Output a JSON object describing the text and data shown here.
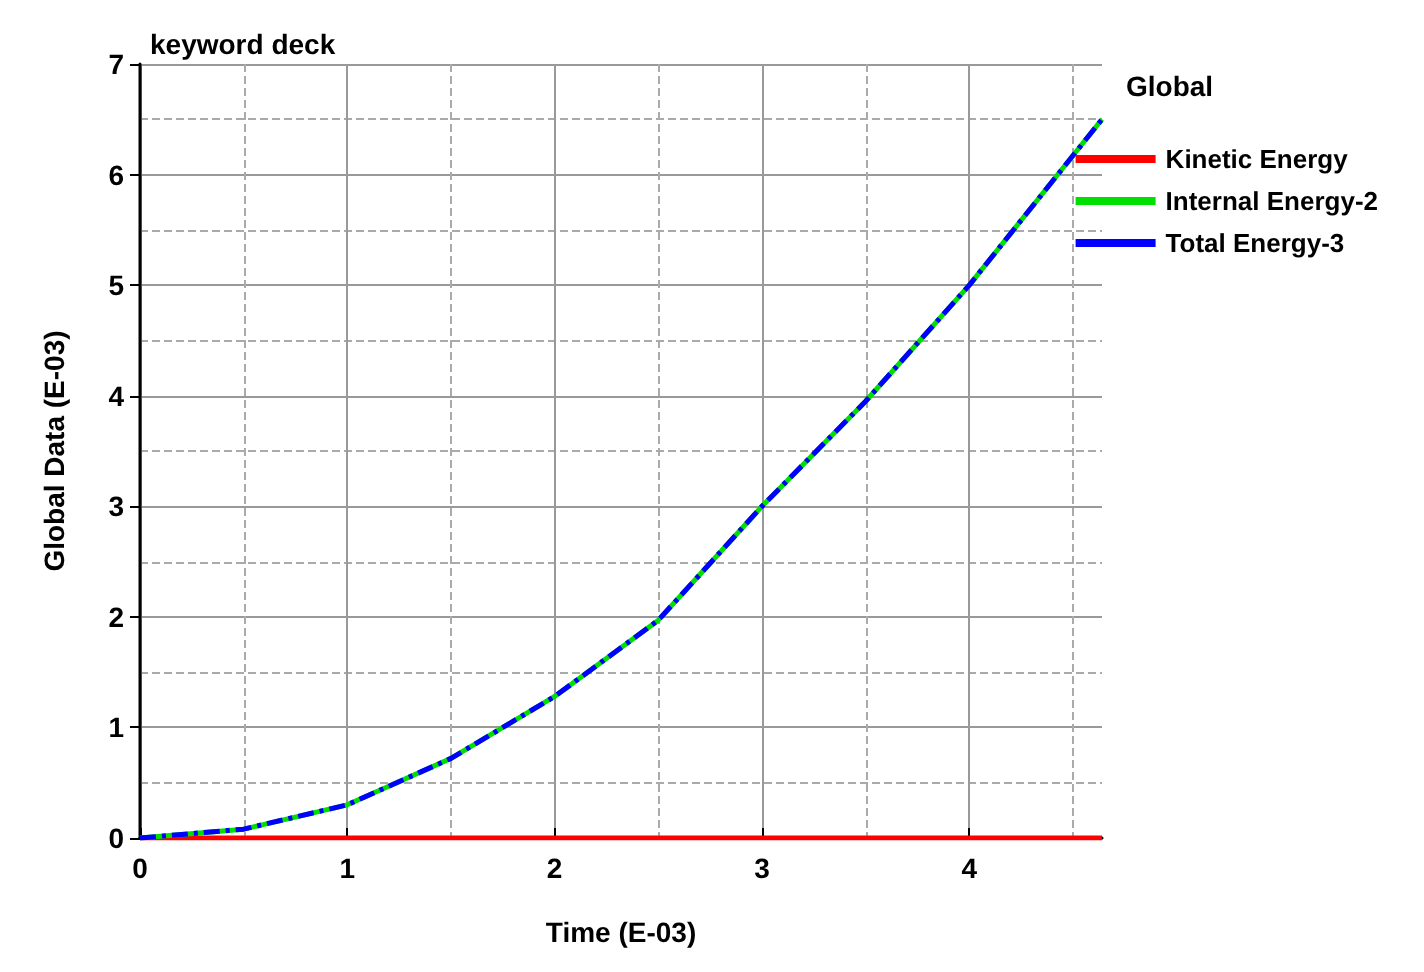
{
  "chart_data": {
    "type": "line",
    "title": "keyword deck",
    "xlabel": "Time (E-03)",
    "ylabel": "Global Data (E-03)",
    "legend_title": "Global",
    "legend": "top right",
    "grid": true,
    "marker": "none",
    "x": [
      0,
      0.5,
      1,
      1.5,
      2,
      2.5,
      3,
      3.5,
      4,
      4.64
    ],
    "xlim": [
      0,
      4.64
    ],
    "xticks": [
      0,
      1,
      2,
      3,
      4
    ],
    "ylim": [
      0,
      7
    ],
    "yticks": [
      0,
      1,
      2,
      3,
      4,
      5,
      6,
      7
    ],
    "series": [
      {
        "name": "Kinetic Energy",
        "color": "#ff0000",
        "line_style": "solid",
        "values": [
          0,
          0,
          0,
          0,
          0,
          0,
          0,
          0,
          0,
          0
        ]
      },
      {
        "name": "Internal Energy-2",
        "color": "#00e000",
        "line_style": "solid",
        "values": [
          0,
          0.08,
          0.3,
          0.72,
          1.28,
          1.97,
          3.0,
          3.95,
          5.0,
          6.5
        ]
      },
      {
        "name": "Total Energy-3",
        "color": "#0000ff",
        "line_style": "dashed",
        "values": [
          0,
          0.08,
          0.3,
          0.72,
          1.28,
          1.97,
          3.0,
          3.95,
          5.0,
          6.5
        ]
      }
    ]
  }
}
